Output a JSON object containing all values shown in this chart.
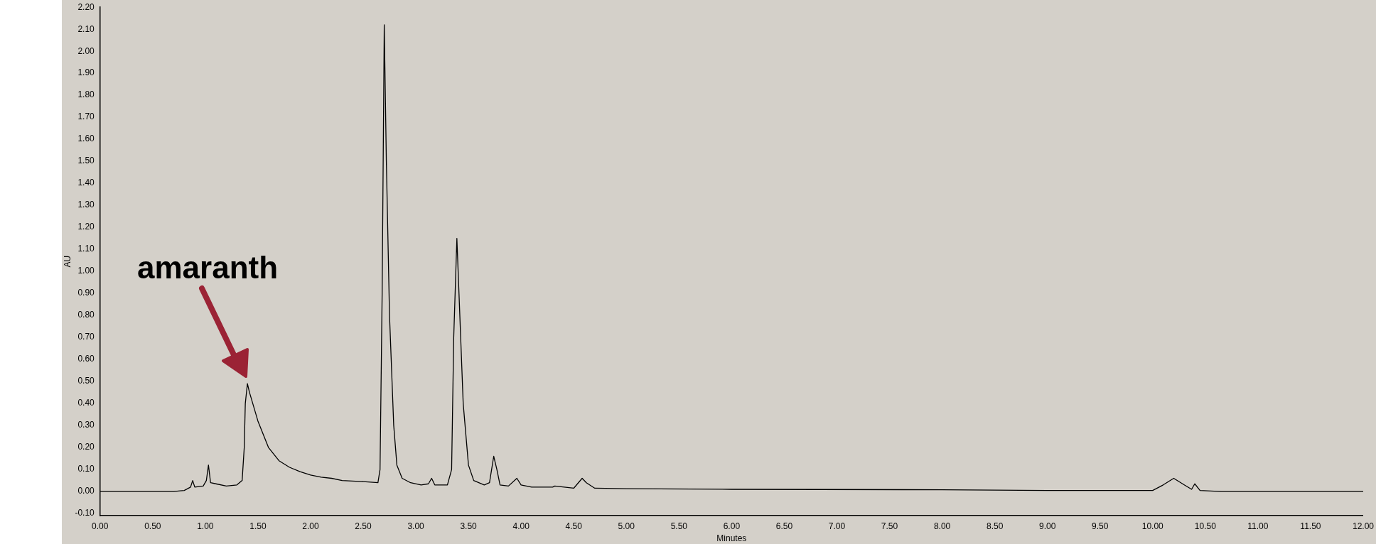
{
  "chart_data": {
    "type": "line",
    "xlabel": "Minutes",
    "ylabel": "AU",
    "annotations": [
      "amaranth"
    ],
    "x": [
      0,
      0.7,
      0.8,
      0.86,
      0.88,
      0.9,
      0.98,
      1.01,
      1.03,
      1.05,
      1.1,
      1.2,
      1.3,
      1.35,
      1.37,
      1.38,
      1.4,
      1.42,
      1.5,
      1.6,
      1.7,
      1.8,
      1.9,
      2.0,
      2.1,
      2.2,
      2.3,
      2.5,
      2.64,
      2.66,
      2.68,
      2.7,
      2.72,
      2.75,
      2.79,
      2.82,
      2.87,
      2.95,
      3.05,
      3.12,
      3.15,
      3.18,
      3.3,
      3.34,
      3.36,
      3.39,
      3.41,
      3.45,
      3.5,
      3.55,
      3.65,
      3.7,
      3.74,
      3.77,
      3.8,
      3.88,
      3.96,
      4.0,
      4.1,
      4.3,
      4.32,
      4.5,
      4.58,
      4.62,
      4.7,
      5.0,
      6.0,
      8.0,
      9.0,
      10.0,
      10.1,
      10.2,
      10.3,
      10.37,
      10.4,
      10.45,
      10.65,
      12.0
    ],
    "series": [
      {
        "color": "#000000",
        "values": [
          0,
          0,
          0.005,
          0.02,
          0.05,
          0.02,
          0.025,
          0.05,
          0.12,
          0.04,
          0.035,
          0.025,
          0.03,
          0.05,
          0.2,
          0.4,
          0.49,
          0.45,
          0.32,
          0.2,
          0.14,
          0.11,
          0.09,
          0.075,
          0.065,
          0.06,
          0.05,
          0.045,
          0.04,
          0.1,
          0.9,
          2.12,
          1.5,
          0.8,
          0.3,
          0.12,
          0.06,
          0.04,
          0.03,
          0.035,
          0.06,
          0.03,
          0.03,
          0.1,
          0.7,
          1.15,
          0.9,
          0.4,
          0.12,
          0.05,
          0.03,
          0.04,
          0.16,
          0.1,
          0.03,
          0.025,
          0.06,
          0.03,
          0.02,
          0.02,
          0.025,
          0.015,
          0.06,
          0.04,
          0.015,
          0.013,
          0.01,
          0.008,
          0.005,
          0.005,
          0.03,
          0.06,
          0.03,
          0.01,
          0.035,
          0.005,
          0,
          0
        ]
      }
    ],
    "xlim": [
      0,
      12
    ],
    "ylim": [
      -0.11,
      2.2
    ],
    "xticks": [
      {
        "value": 0,
        "label": "0.00"
      },
      {
        "value": 0.5,
        "label": "0.50"
      },
      {
        "value": 1,
        "label": "1.00"
      },
      {
        "value": 1.5,
        "label": "1.50"
      },
      {
        "value": 2,
        "label": "2.00"
      },
      {
        "value": 2.5,
        "label": "2.50"
      },
      {
        "value": 3,
        "label": "3.00"
      },
      {
        "value": 3.5,
        "label": "3.50"
      },
      {
        "value": 4,
        "label": "4.00"
      },
      {
        "value": 4.5,
        "label": "4.50"
      },
      {
        "value": 5,
        "label": "5.00"
      },
      {
        "value": 5.5,
        "label": "5.50"
      },
      {
        "value": 6,
        "label": "6.00"
      },
      {
        "value": 6.5,
        "label": "6.50"
      },
      {
        "value": 7,
        "label": "7.00"
      },
      {
        "value": 7.5,
        "label": "7.50"
      },
      {
        "value": 8,
        "label": "8.00"
      },
      {
        "value": 8.5,
        "label": "8.50"
      },
      {
        "value": 9,
        "label": "9.00"
      },
      {
        "value": 9.5,
        "label": "9.50"
      },
      {
        "value": 10,
        "label": "10.00"
      },
      {
        "value": 10.5,
        "label": "10.50"
      },
      {
        "value": 11,
        "label": "11.00"
      },
      {
        "value": 11.5,
        "label": "11.50"
      },
      {
        "value": 12,
        "label": "12.00"
      }
    ],
    "yticks": [
      {
        "value": -0.1,
        "label": "-0.10"
      },
      {
        "value": 0,
        "label": "0.00"
      },
      {
        "value": 0.1,
        "label": "0.10"
      },
      {
        "value": 0.2,
        "label": "0.20"
      },
      {
        "value": 0.3,
        "label": "0.30"
      },
      {
        "value": 0.4,
        "label": "0.40"
      },
      {
        "value": 0.5,
        "label": "0.50"
      },
      {
        "value": 0.6,
        "label": "0.60"
      },
      {
        "value": 0.7,
        "label": "0.70"
      },
      {
        "value": 0.8,
        "label": "0.80"
      },
      {
        "value": 0.9,
        "label": "0.90"
      },
      {
        "value": 1,
        "label": "1.00"
      },
      {
        "value": 1.1,
        "label": "1.10"
      },
      {
        "value": 1.2,
        "label": "1.20"
      },
      {
        "value": 1.3,
        "label": "1.30"
      },
      {
        "value": 1.4,
        "label": "1.40"
      },
      {
        "value": 1.5,
        "label": "1.50"
      },
      {
        "value": 1.6,
        "label": "1.60"
      },
      {
        "value": 1.7,
        "label": "1.70"
      },
      {
        "value": 1.8,
        "label": "1.80"
      },
      {
        "value": 1.9,
        "label": "1.90"
      },
      {
        "value": 2,
        "label": "2.00"
      },
      {
        "value": 2.1,
        "label": "2.10"
      },
      {
        "value": 2.2,
        "label": "2.20"
      }
    ],
    "grid": false,
    "legend": false,
    "marker": "none",
    "line_style": "solid"
  }
}
